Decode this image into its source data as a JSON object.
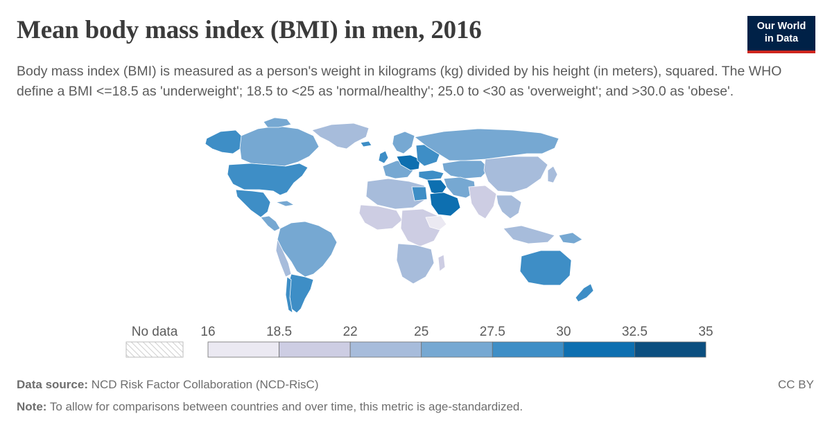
{
  "header": {
    "title": "Mean body mass index (BMI) in men, 2016",
    "subtitle": "Body mass index (BMI) is measured as a person's weight in kilograms (kg) divided by his height (in meters), squared. The WHO define a BMI <=18.5 as 'underweight'; 18.5 to <25 as 'normal/healthy'; 25.0 to <30 as 'overweight'; and >30.0 as 'obese'.",
    "logo_line1": "Our World",
    "logo_line2": "in Data"
  },
  "legend": {
    "no_data_label": "No data",
    "ticks": [
      "16",
      "18.5",
      "22",
      "25",
      "27.5",
      "30",
      "32.5",
      "35"
    ],
    "colors": [
      "#ebe9f2",
      "#cdcde3",
      "#a7bcdb",
      "#76a8d2",
      "#3e8ec6",
      "#0d6fb0",
      "#0b4f80"
    ]
  },
  "footer": {
    "source_label": "Data source:",
    "source_text": " NCD Risk Factor Collaboration (NCD-RisC)",
    "note_label": "Note:",
    "note_text": " To allow for comparisons between countries and over time, this metric is age-standardized.",
    "license": "CC BY"
  }
}
